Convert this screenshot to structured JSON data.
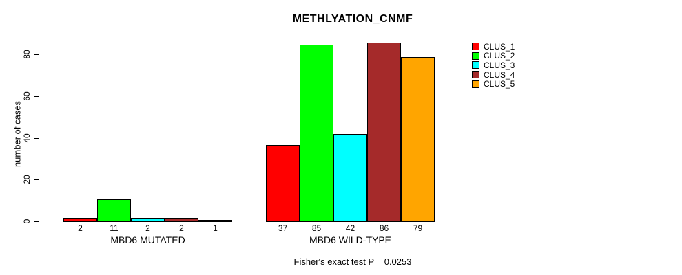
{
  "chart_data": {
    "type": "bar",
    "title": "METHLYATION_CNMF",
    "xlabel": "",
    "ylabel": "number of cases",
    "ylim": [
      0,
      80
    ],
    "yticks": [
      0,
      20,
      40,
      60,
      80
    ],
    "grid": false,
    "legend_position": "right",
    "groups": [
      "MBD6 MUTATED",
      "MBD6 WILD-TYPE"
    ],
    "series": [
      {
        "name": "CLUS_1",
        "color": "#FF0000",
        "values": [
          2,
          37
        ]
      },
      {
        "name": "CLUS_2",
        "color": "#00FF00",
        "values": [
          11,
          85
        ]
      },
      {
        "name": "CLUS_3",
        "color": "#00FFFF",
        "values": [
          2,
          42
        ]
      },
      {
        "name": "CLUS_4",
        "color": "#A52A2A",
        "values": [
          2,
          86
        ]
      },
      {
        "name": "CLUS_5",
        "color": "#FFA500",
        "values": [
          1,
          79
        ]
      }
    ],
    "bar_value_labels": [
      [
        2,
        11,
        2,
        2,
        1
      ],
      [
        37,
        85,
        42,
        86,
        79
      ]
    ],
    "annotation": "Fisher's exact test P = 0.0253",
    "bar_border_color": "#000000",
    "background_color": "#FFFFFF"
  }
}
